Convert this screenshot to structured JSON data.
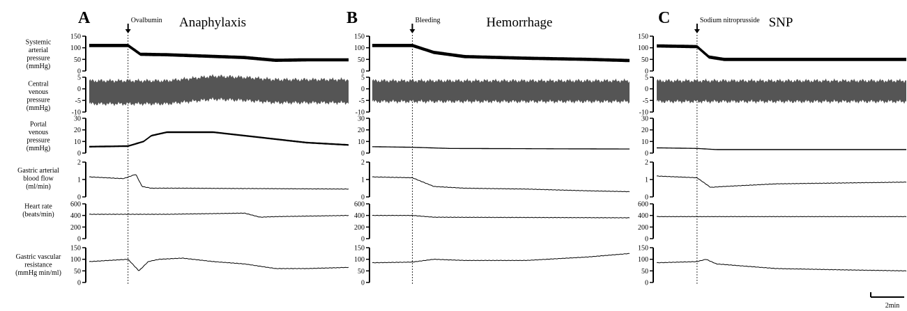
{
  "colors": {
    "trace": "#000000",
    "cvp_trace": "#555555",
    "axis": "#000000"
  },
  "scale_bar": {
    "label": "2min"
  },
  "row_labels": [
    [
      "Systemic",
      "arterial",
      "pressure",
      "(mmHg)"
    ],
    [
      "Central",
      "venous",
      "pressure",
      "(mmHg)"
    ],
    [
      "Portal",
      "venous",
      "pressure",
      "(mmHg)"
    ],
    [
      "Gastric arterial",
      "blood flow",
      "(ml/min)"
    ],
    [
      "Heart rate",
      "(beats/min)"
    ],
    [
      "Gastric vascular",
      "resistance",
      "(mmHg min/ml)"
    ]
  ],
  "chart_data": [
    {
      "type": "line",
      "panel": "A",
      "title": "Anaphylaxis",
      "annotation": "Ovalbumin",
      "x_unit": "min",
      "event_time_min": 2.5,
      "duration_min": 16.7,
      "series": [
        {
          "ylim": [
            0,
            150
          ],
          "yticks": [
            0,
            50,
            100,
            150
          ],
          "band": 14,
          "x": [
            0,
            2.5,
            3.3,
            5,
            10,
            12,
            14,
            16.7
          ],
          "y": [
            110,
            110,
            72,
            70,
            58,
            46,
            48,
            48
          ]
        },
        {
          "ylim": [
            -10,
            5
          ],
          "yticks": [
            -10,
            -5,
            0,
            5
          ],
          "band": 10,
          "noise": true,
          "x": [
            0,
            5,
            8,
            10,
            12,
            16.7
          ],
          "y": [
            -1.5,
            -1.5,
            0.5,
            0,
            -1,
            -1
          ]
        },
        {
          "ylim": [
            0,
            30
          ],
          "yticks": [
            0,
            10,
            20,
            30
          ],
          "band": 1.4,
          "x": [
            0,
            2.5,
            3.5,
            4,
            5,
            8,
            10,
            12,
            14,
            16.7
          ],
          "y": [
            5.5,
            6,
            10,
            15,
            18,
            18,
            15,
            12,
            9,
            7
          ]
        },
        {
          "ylim": [
            0,
            2
          ],
          "yticks": [
            0,
            1,
            2
          ],
          "x": [
            0,
            2.2,
            3,
            3.4,
            4,
            6,
            16.7
          ],
          "y": [
            1.15,
            1.05,
            1.3,
            0.6,
            0.5,
            0.5,
            0.45
          ]
        },
        {
          "ylim": [
            0,
            600
          ],
          "yticks": [
            0,
            200,
            400,
            600
          ],
          "x": [
            0,
            5,
            10,
            11,
            12,
            16.7
          ],
          "y": [
            420,
            420,
            440,
            370,
            380,
            400
          ]
        },
        {
          "ylim": [
            0,
            150
          ],
          "yticks": [
            0,
            50,
            100,
            150
          ],
          "x": [
            0,
            2.5,
            3.2,
            3.8,
            4.5,
            6,
            8,
            10,
            12,
            14,
            16.7
          ],
          "y": [
            90,
            100,
            50,
            90,
            100,
            105,
            90,
            80,
            60,
            60,
            65
          ]
        }
      ]
    },
    {
      "type": "line",
      "panel": "B",
      "title": "Hemorrhage",
      "annotation": "Bleeding",
      "x_unit": "min",
      "event_time_min": 2.6,
      "duration_min": 16.7,
      "series": [
        {
          "ylim": [
            0,
            150
          ],
          "yticks": [
            0,
            50,
            100,
            150
          ],
          "band": 14,
          "x": [
            0,
            2.6,
            4,
            6,
            10,
            14,
            16.7
          ],
          "y": [
            110,
            110,
            80,
            62,
            55,
            50,
            45
          ]
        },
        {
          "ylim": [
            -10,
            5
          ],
          "yticks": [
            -10,
            -5,
            0,
            5
          ],
          "band": 9,
          "noise": true,
          "x": [
            0,
            16.7
          ],
          "y": [
            -1,
            -1
          ]
        },
        {
          "ylim": [
            0,
            30
          ],
          "yticks": [
            0,
            10,
            20,
            30
          ],
          "band": 0.8,
          "x": [
            0,
            2.6,
            5,
            16.7
          ],
          "y": [
            5.5,
            5,
            4,
            3.5
          ]
        },
        {
          "ylim": [
            0,
            2
          ],
          "yticks": [
            0,
            1,
            2
          ],
          "x": [
            0,
            2.6,
            4,
            6,
            10,
            14,
            16.7
          ],
          "y": [
            1.15,
            1.1,
            0.6,
            0.5,
            0.45,
            0.35,
            0.3
          ]
        },
        {
          "ylim": [
            0,
            600
          ],
          "yticks": [
            0,
            200,
            400,
            600
          ],
          "x": [
            0,
            2.6,
            4,
            16.7
          ],
          "y": [
            400,
            400,
            370,
            360
          ]
        },
        {
          "ylim": [
            0,
            150
          ],
          "yticks": [
            0,
            50,
            100,
            150
          ],
          "x": [
            0,
            2.6,
            4,
            6,
            10,
            14,
            16.7
          ],
          "y": [
            85,
            88,
            100,
            95,
            95,
            110,
            125
          ]
        }
      ]
    },
    {
      "type": "line",
      "panel": "C",
      "title": "SNP",
      "annotation": "Sodium nitroprusside",
      "x_unit": "min",
      "event_time_min": 2.7,
      "duration_min": 16.7,
      "series": [
        {
          "ylim": [
            0,
            150
          ],
          "yticks": [
            0,
            50,
            100,
            150
          ],
          "band": 14,
          "x": [
            0,
            2.7,
            3.5,
            4.5,
            16.7
          ],
          "y": [
            108,
            105,
            60,
            50,
            50
          ]
        },
        {
          "ylim": [
            -10,
            5
          ],
          "yticks": [
            -10,
            -5,
            0,
            5
          ],
          "band": 9,
          "noise": true,
          "x": [
            0,
            16.7
          ],
          "y": [
            -1,
            -1
          ]
        },
        {
          "ylim": [
            0,
            30
          ],
          "yticks": [
            0,
            10,
            20,
            30
          ],
          "band": 0.8,
          "x": [
            0,
            2.7,
            4,
            16.7
          ],
          "y": [
            4.5,
            4,
            3,
            3
          ]
        },
        {
          "ylim": [
            0,
            2
          ],
          "yticks": [
            0,
            1,
            2
          ],
          "x": [
            0,
            2.7,
            3.6,
            4.5,
            8,
            16.7
          ],
          "y": [
            1.2,
            1.1,
            0.55,
            0.6,
            0.75,
            0.85
          ]
        },
        {
          "ylim": [
            0,
            600
          ],
          "yticks": [
            0,
            200,
            400,
            600
          ],
          "x": [
            0,
            16.7
          ],
          "y": [
            380,
            380
          ]
        },
        {
          "ylim": [
            0,
            150
          ],
          "yticks": [
            0,
            50,
            100,
            150
          ],
          "x": [
            0,
            2.7,
            3.3,
            4,
            8,
            12,
            16.7
          ],
          "y": [
            85,
            90,
            100,
            80,
            60,
            55,
            50
          ]
        }
      ]
    }
  ]
}
